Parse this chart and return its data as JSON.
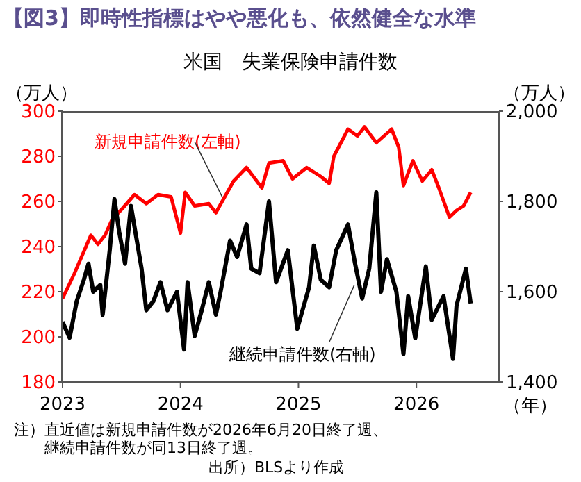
{
  "chart_data": {
    "type": "line",
    "title": "【図3】即時性指標はやや悪化も、依然健全な水準",
    "subtitle": "米国　失業保険申請件数",
    "ylabel": "（万人）",
    "y2label": "（万人）",
    "xlabel": "（年）",
    "xlim": [
      2023,
      2026.7
    ],
    "xticks": [
      2023,
      2024,
      2025,
      2026
    ],
    "ylim": [
      180,
      300
    ],
    "yticks": [
      180,
      200,
      220,
      240,
      260,
      280,
      300
    ],
    "y2lim": [
      1400,
      2000
    ],
    "y2ticks": [
      {
        "value": 1400,
        "label": "1,400"
      },
      {
        "value": 1600,
        "label": "1,600"
      },
      {
        "value": 1800,
        "label": "1,800"
      },
      {
        "value": 2000,
        "label": "2,000"
      }
    ],
    "series": [
      {
        "name": "新規申請件数(左軸)",
        "color": "#ff0000",
        "x": [
          2023.0,
          2023.1,
          2023.24,
          2023.3,
          2023.36,
          2023.42,
          2023.51,
          2023.61,
          2023.71,
          2023.81,
          2023.92,
          2024.0,
          2024.04,
          2024.12,
          2024.24,
          2024.3,
          2024.45,
          2024.56,
          2024.69,
          2024.75,
          2024.87,
          2024.95,
          2025.07,
          2025.19,
          2025.26,
          2025.3,
          2025.42,
          2025.5,
          2025.56,
          2025.66,
          2025.79,
          2025.85,
          2025.89,
          2025.97,
          2026.05,
          2026.13,
          2026.19,
          2026.28,
          2026.34,
          2026.4,
          2026.46
        ],
        "values": [
          217,
          228,
          245,
          241,
          245,
          252,
          257,
          263,
          259,
          263,
          262,
          246,
          264,
          258,
          259,
          255,
          269,
          275,
          266,
          277,
          278,
          270,
          275,
          271,
          268,
          280,
          292,
          289,
          293,
          286,
          292,
          284,
          267,
          278,
          269,
          274,
          266,
          253,
          256,
          258,
          264
        ]
      },
      {
        "name": "継続申請件数(右軸)",
        "color": "#000000",
        "axis": "y2",
        "x": [
          2023.0,
          2023.06,
          2023.12,
          2023.18,
          2023.22,
          2023.26,
          2023.32,
          2023.34,
          2023.4,
          2023.44,
          2023.48,
          2023.53,
          2023.58,
          2023.67,
          2023.71,
          2023.77,
          2023.83,
          2023.89,
          2023.97,
          2024.03,
          2024.06,
          2024.12,
          2024.18,
          2024.24,
          2024.3,
          2024.34,
          2024.42,
          2024.48,
          2024.56,
          2024.6,
          2024.67,
          2024.75,
          2024.81,
          2024.91,
          2024.99,
          2025.09,
          2025.13,
          2025.19,
          2025.26,
          2025.32,
          2025.42,
          2025.48,
          2025.54,
          2025.6,
          2025.66,
          2025.7,
          2025.75,
          2025.83,
          2025.89,
          2025.93,
          2025.99,
          2026.08,
          2026.13,
          2026.23,
          2026.31,
          2026.34,
          2026.42,
          2026.46
        ],
        "values": [
          1533,
          1498,
          1579,
          1626,
          1662,
          1600,
          1615,
          1549,
          1692,
          1805,
          1733,
          1662,
          1790,
          1651,
          1559,
          1579,
          1621,
          1559,
          1600,
          1472,
          1621,
          1502,
          1559,
          1621,
          1549,
          1600,
          1713,
          1677,
          1749,
          1651,
          1641,
          1800,
          1621,
          1692,
          1518,
          1610,
          1702,
          1626,
          1610,
          1692,
          1749,
          1662,
          1585,
          1651,
          1820,
          1600,
          1672,
          1600,
          1462,
          1590,
          1497,
          1656,
          1538,
          1590,
          1451,
          1569,
          1651,
          1574
        ]
      }
    ],
    "annotations": [
      "注）直近値は新規申請件数が2026年6月20日終了週、",
      "継続申請件数が同13日終了週。",
      "出所）BLSより作成"
    ]
  }
}
